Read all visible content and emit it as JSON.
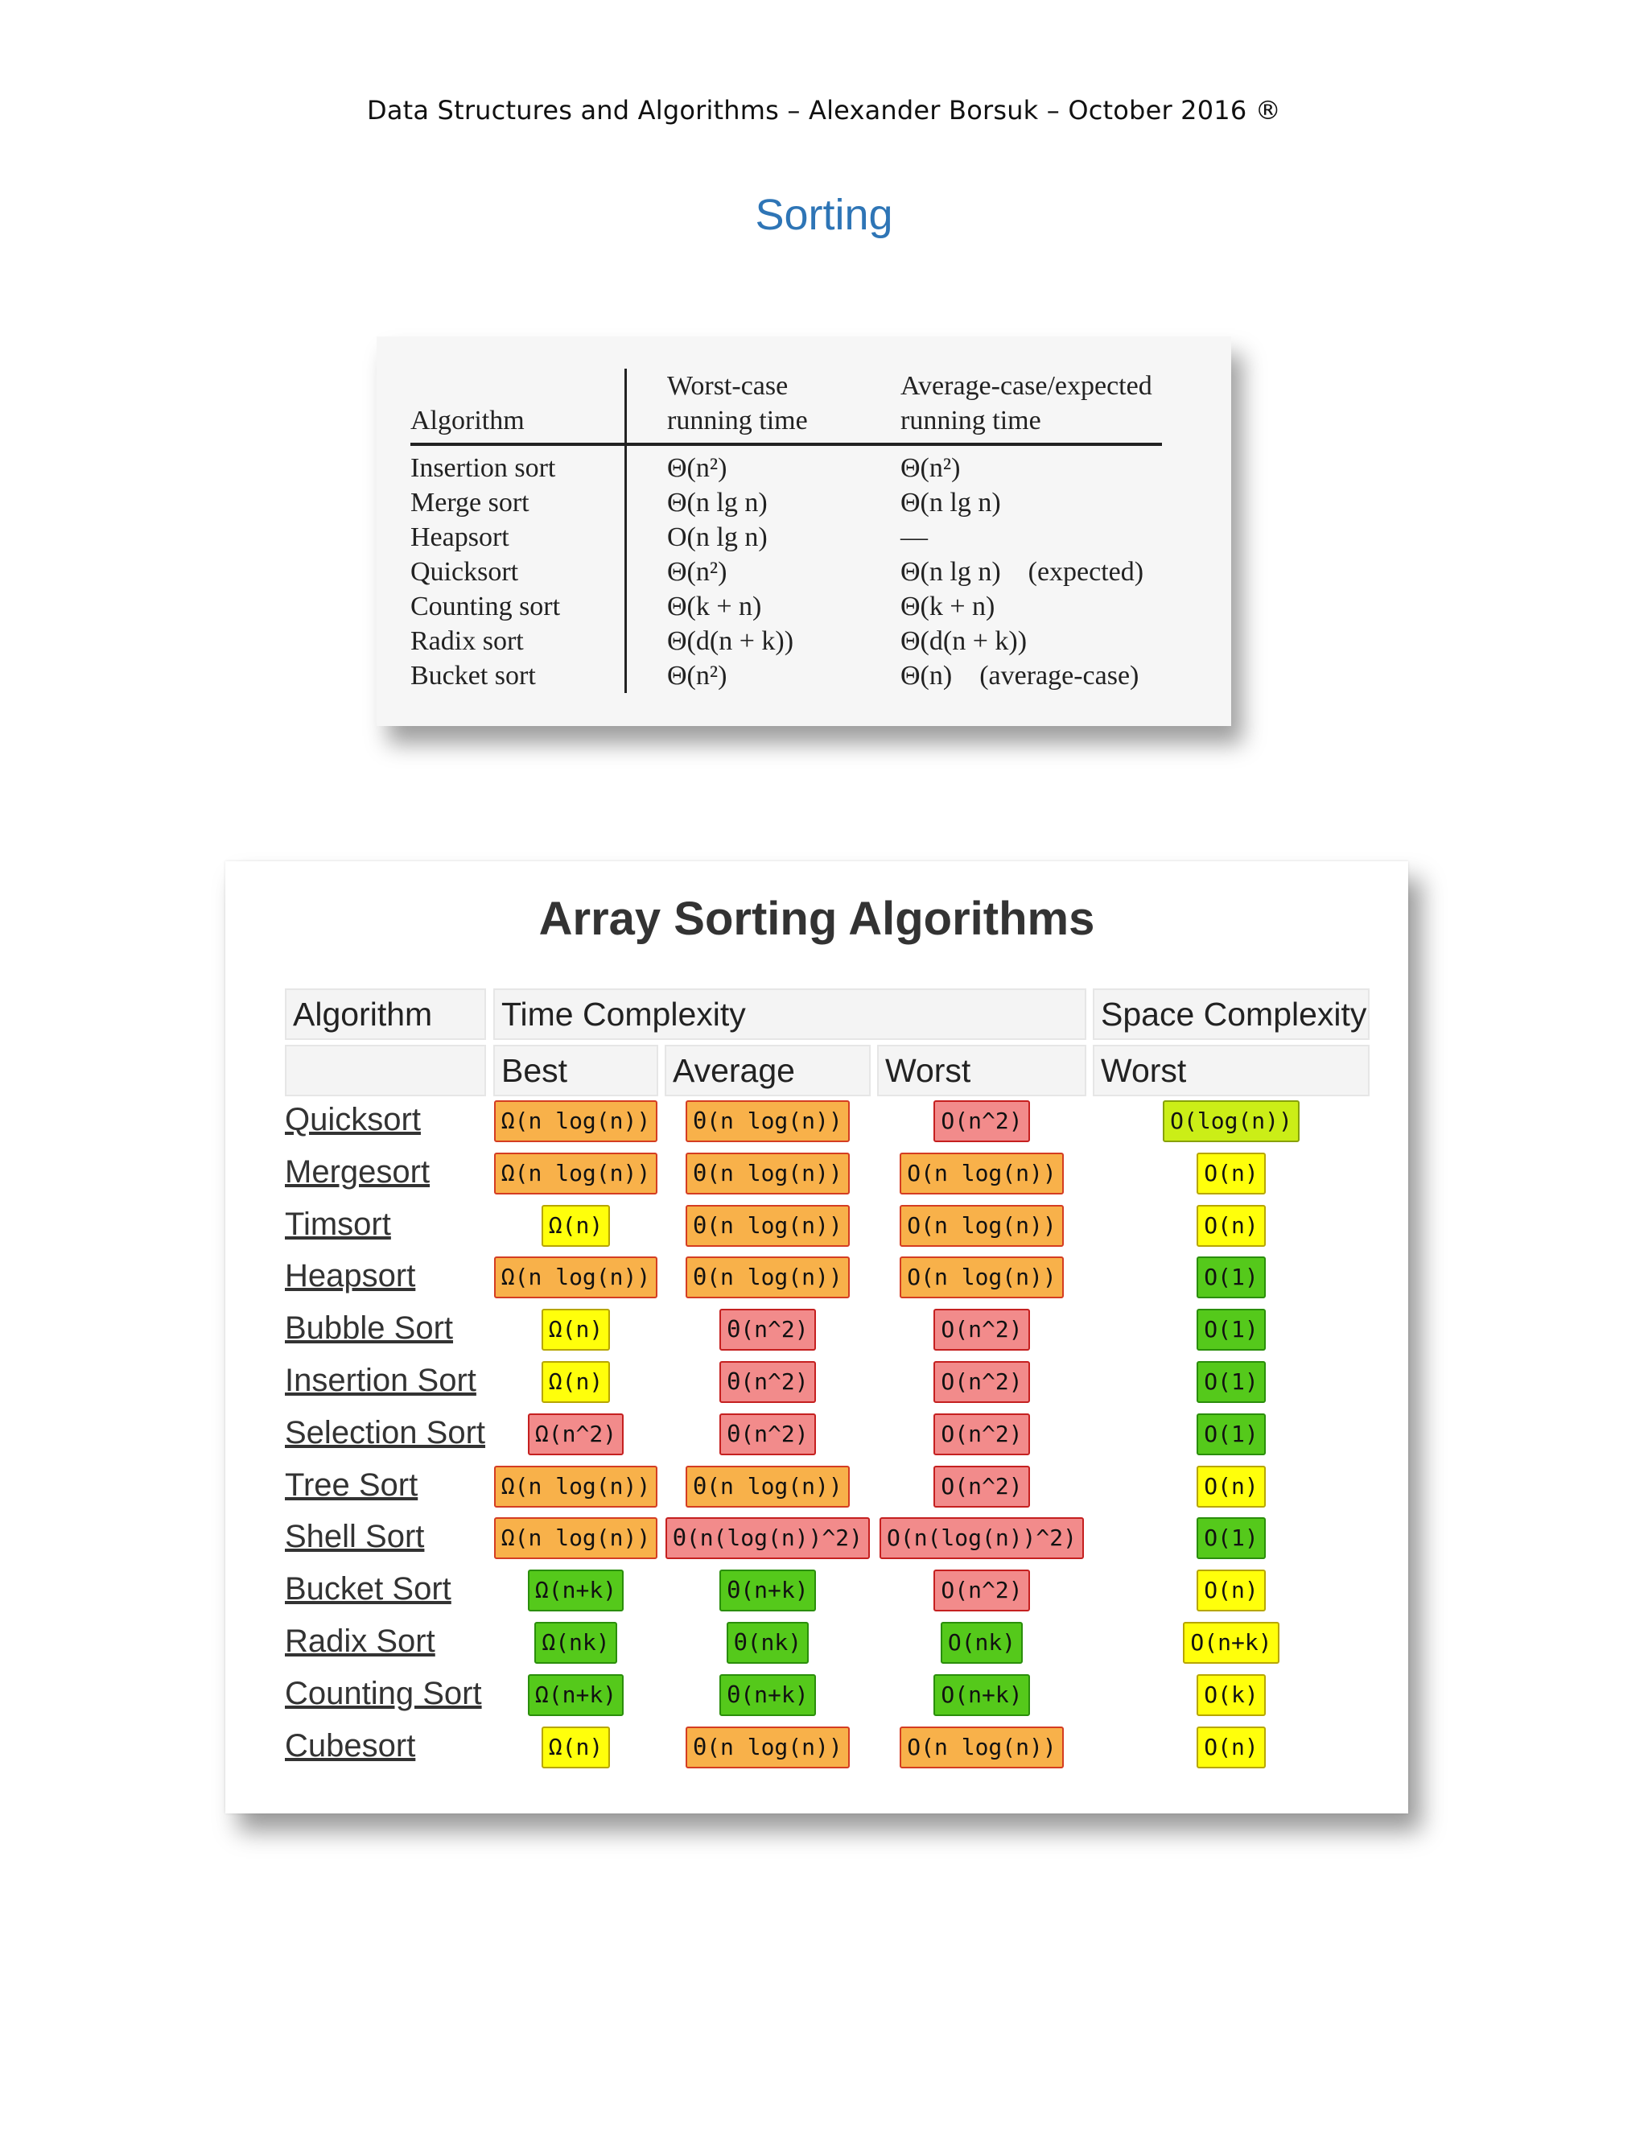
{
  "header": {
    "text": "Data Structures and Algorithms – Alexander Borsuk – October 2016 ®"
  },
  "section_title": "Sorting",
  "textbook_table": {
    "columns": {
      "algorithm": "Algorithm",
      "worst_line1": "Worst-case",
      "worst_line2": "running time",
      "avg_line1": "Average-case/expected",
      "avg_line2": "running time"
    },
    "rows": [
      {
        "name": "Insertion sort",
        "worst": "Θ(n²)",
        "avg": "Θ(n²)"
      },
      {
        "name": "Merge sort",
        "worst": "Θ(n lg n)",
        "avg": "Θ(n lg n)"
      },
      {
        "name": "Heapsort",
        "worst": "O(n lg n)",
        "avg": "—"
      },
      {
        "name": "Quicksort",
        "worst": "Θ(n²)",
        "avg": "Θ(n lg n) (expected)"
      },
      {
        "name": "Counting sort",
        "worst": "Θ(k + n)",
        "avg": "Θ(k + n)"
      },
      {
        "name": "Radix sort",
        "worst": "Θ(d(n + k))",
        "avg": "Θ(d(n + k))"
      },
      {
        "name": "Bucket sort",
        "worst": "Θ(n²)",
        "avg": "Θ(n) (average-case)"
      }
    ]
  },
  "array_sorting": {
    "title": "Array Sorting Algorithms",
    "headers": {
      "algorithm": "Algorithm",
      "time_complexity": "Time Complexity",
      "space_complexity": "Space Complexity",
      "best": "Best",
      "average": "Average",
      "worst": "Worst",
      "space_worst": "Worst"
    },
    "rows": [
      {
        "name": "Quicksort",
        "best": {
          "text": "Ω(n log(n))",
          "color": "orange"
        },
        "average": {
          "text": "Θ(n log(n))",
          "color": "orange"
        },
        "worst": {
          "text": "O(n^2)",
          "color": "red"
        },
        "space": {
          "text": "O(log(n))",
          "color": "lime"
        }
      },
      {
        "name": "Mergesort",
        "best": {
          "text": "Ω(n log(n))",
          "color": "orange"
        },
        "average": {
          "text": "Θ(n log(n))",
          "color": "orange"
        },
        "worst": {
          "text": "O(n log(n))",
          "color": "orange"
        },
        "space": {
          "text": "O(n)",
          "color": "yellow"
        }
      },
      {
        "name": "Timsort",
        "best": {
          "text": "Ω(n)",
          "color": "yellow"
        },
        "average": {
          "text": "Θ(n log(n))",
          "color": "orange"
        },
        "worst": {
          "text": "O(n log(n))",
          "color": "orange"
        },
        "space": {
          "text": "O(n)",
          "color": "yellow"
        }
      },
      {
        "name": "Heapsort",
        "best": {
          "text": "Ω(n log(n))",
          "color": "orange"
        },
        "average": {
          "text": "Θ(n log(n))",
          "color": "orange"
        },
        "worst": {
          "text": "O(n log(n))",
          "color": "orange"
        },
        "space": {
          "text": "O(1)",
          "color": "green"
        }
      },
      {
        "name": "Bubble Sort",
        "best": {
          "text": "Ω(n)",
          "color": "yellow"
        },
        "average": {
          "text": "Θ(n^2)",
          "color": "red"
        },
        "worst": {
          "text": "O(n^2)",
          "color": "red"
        },
        "space": {
          "text": "O(1)",
          "color": "green"
        }
      },
      {
        "name": "Insertion Sort",
        "best": {
          "text": "Ω(n)",
          "color": "yellow"
        },
        "average": {
          "text": "Θ(n^2)",
          "color": "red"
        },
        "worst": {
          "text": "O(n^2)",
          "color": "red"
        },
        "space": {
          "text": "O(1)",
          "color": "green"
        }
      },
      {
        "name": "Selection Sort",
        "best": {
          "text": "Ω(n^2)",
          "color": "red"
        },
        "average": {
          "text": "Θ(n^2)",
          "color": "red"
        },
        "worst": {
          "text": "O(n^2)",
          "color": "red"
        },
        "space": {
          "text": "O(1)",
          "color": "green"
        }
      },
      {
        "name": "Tree Sort",
        "best": {
          "text": "Ω(n log(n))",
          "color": "orange"
        },
        "average": {
          "text": "Θ(n log(n))",
          "color": "orange"
        },
        "worst": {
          "text": "O(n^2)",
          "color": "red"
        },
        "space": {
          "text": "O(n)",
          "color": "yellow"
        }
      },
      {
        "name": "Shell Sort",
        "best": {
          "text": "Ω(n log(n))",
          "color": "orange"
        },
        "average": {
          "text": "Θ(n(log(n))^2)",
          "color": "red"
        },
        "worst": {
          "text": "O(n(log(n))^2)",
          "color": "red"
        },
        "space": {
          "text": "O(1)",
          "color": "green"
        }
      },
      {
        "name": "Bucket Sort",
        "best": {
          "text": "Ω(n+k)",
          "color": "green"
        },
        "average": {
          "text": "Θ(n+k)",
          "color": "green"
        },
        "worst": {
          "text": "O(n^2)",
          "color": "red"
        },
        "space": {
          "text": "O(n)",
          "color": "yellow"
        }
      },
      {
        "name": "Radix Sort",
        "best": {
          "text": "Ω(nk)",
          "color": "green"
        },
        "average": {
          "text": "Θ(nk)",
          "color": "green"
        },
        "worst": {
          "text": "O(nk)",
          "color": "green"
        },
        "space": {
          "text": "O(n+k)",
          "color": "yellow"
        }
      },
      {
        "name": "Counting Sort",
        "best": {
          "text": "Ω(n+k)",
          "color": "green"
        },
        "average": {
          "text": "Θ(n+k)",
          "color": "green"
        },
        "worst": {
          "text": "O(n+k)",
          "color": "green"
        },
        "space": {
          "text": "O(k)",
          "color": "yellow"
        }
      },
      {
        "name": "Cubesort",
        "best": {
          "text": "Ω(n)",
          "color": "yellow"
        },
        "average": {
          "text": "Θ(n log(n))",
          "color": "orange"
        },
        "worst": {
          "text": "O(n log(n))",
          "color": "orange"
        },
        "space": {
          "text": "O(n)",
          "color": "yellow"
        }
      }
    ]
  },
  "colors": {
    "section_title": "#2e75b6",
    "red": "#f28b8b",
    "orange": "#f8b14a",
    "yellow": "#ffff0b",
    "lime": "#cbee17",
    "green": "#55c91b"
  }
}
